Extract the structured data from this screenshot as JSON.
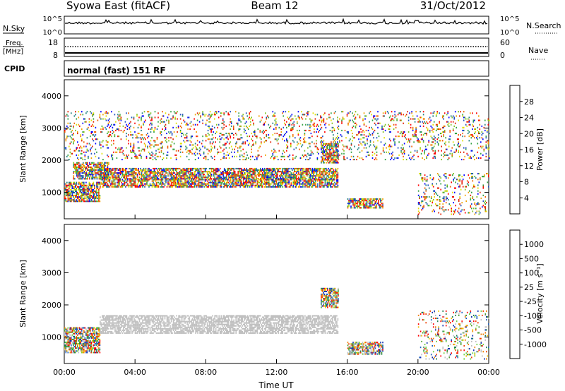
{
  "header": {
    "station": "Syowa East (fitACF)",
    "beam": "Beam 12",
    "date": "31/Oct/2012"
  },
  "strips": {
    "nsky_label": "N.Sky",
    "nsearch_label": "N.Search",
    "freq_label_top": "Freq.",
    "freq_label_unit": "[MHz]",
    "nave_label": "Nave",
    "cpid_label": "CPID",
    "cpid_text": "normal (fast) 151 RF",
    "noise_ticks": [
      "10^5",
      "10^0"
    ],
    "freq_ticks": [
      "18",
      "8"
    ],
    "nave_ticks": [
      "60",
      "0"
    ]
  },
  "chart_data": [
    {
      "type": "heatmap",
      "parameter": "power",
      "ylabel": "Slant Range [km]",
      "xlabel": "",
      "ylim": [
        180,
        4500
      ],
      "y_ticks": [
        1000,
        2000,
        3000,
        4000
      ],
      "x_ticks": [
        "00:00",
        "04:00",
        "08:00",
        "12:00",
        "16:00",
        "20:00",
        "00:00"
      ],
      "xlim_hours": [
        0,
        24
      ],
      "colorbar": {
        "label": "Power [dB]",
        "ticks": [
          4,
          8,
          12,
          16,
          20,
          24,
          28
        ],
        "colors": [
          "#0000ff",
          "#2050c0",
          "#208080",
          "#30a040",
          "#80c020",
          "#e0e000",
          "#f0a000",
          "#f06000",
          "#e02000",
          "#ff0000"
        ]
      },
      "echo_regions": [
        {
          "t": [
            0.0,
            2.0
          ],
          "r": [
            700,
            1300
          ],
          "value": "12-24 dB"
        },
        {
          "t": [
            0.5,
            2.5
          ],
          "r": [
            1400,
            1900
          ],
          "value": "8-16 dB"
        },
        {
          "t": [
            2.0,
            15.5
          ],
          "r": [
            1150,
            1400
          ],
          "value": "16-28 dB"
        },
        {
          "t": [
            2.0,
            15.5
          ],
          "r": [
            1400,
            1750
          ],
          "value": "4-16 dB"
        },
        {
          "t": [
            14.5,
            15.5
          ],
          "r": [
            1900,
            2500
          ],
          "value": "12-24 dB"
        },
        {
          "t": [
            16.0,
            18.0
          ],
          "r": [
            500,
            800
          ],
          "value": "8-20 dB"
        },
        {
          "t": [
            20.0,
            24.0
          ],
          "r": [
            300,
            1600
          ],
          "value": "12-28 dB"
        },
        {
          "t": [
            0.0,
            24.0
          ],
          "r": [
            2000,
            3500
          ],
          "value": "4-12 dB"
        }
      ]
    },
    {
      "type": "heatmap",
      "parameter": "velocity",
      "ylabel": "Slant Range [km]",
      "xlabel": "Time UT",
      "ylim": [
        180,
        4500
      ],
      "y_ticks": [
        1000,
        2000,
        3000,
        4000
      ],
      "x_ticks": [
        "00:00",
        "04:00",
        "08:00",
        "12:00",
        "16:00",
        "20:00",
        "00:00"
      ],
      "xlim_hours": [
        0,
        24
      ],
      "colorbar": {
        "label": "Velocity [m s⁻¹]",
        "ticks": [
          "1000",
          "500",
          "100",
          "25",
          "-25",
          "-100",
          "-500",
          "-1000"
        ],
        "colors": [
          "#1030b0",
          "#2060c0",
          "#208050",
          "#50a030",
          "#70d040",
          "#c0c0c0",
          "#c0c0c0",
          "#f0c000",
          "#f08000",
          "#f04000",
          "#ff0000"
        ]
      },
      "echo_regions": [
        {
          "t": [
            0.0,
            2.0
          ],
          "r": [
            500,
            1300
          ],
          "value": "-500 to -100 m/s"
        },
        {
          "t": [
            2.0,
            15.5
          ],
          "r": [
            1100,
            1650
          ],
          "value": "-25 to 25 m/s"
        },
        {
          "t": [
            14.5,
            15.5
          ],
          "r": [
            1900,
            2500
          ],
          "value": "500-1000 m/s"
        },
        {
          "t": [
            16.0,
            18.0
          ],
          "r": [
            450,
            850
          ],
          "value": "25-100 m/s"
        },
        {
          "t": [
            20.0,
            24.0
          ],
          "r": [
            300,
            1800
          ],
          "value": "-1000 to 500 m/s"
        }
      ]
    }
  ]
}
